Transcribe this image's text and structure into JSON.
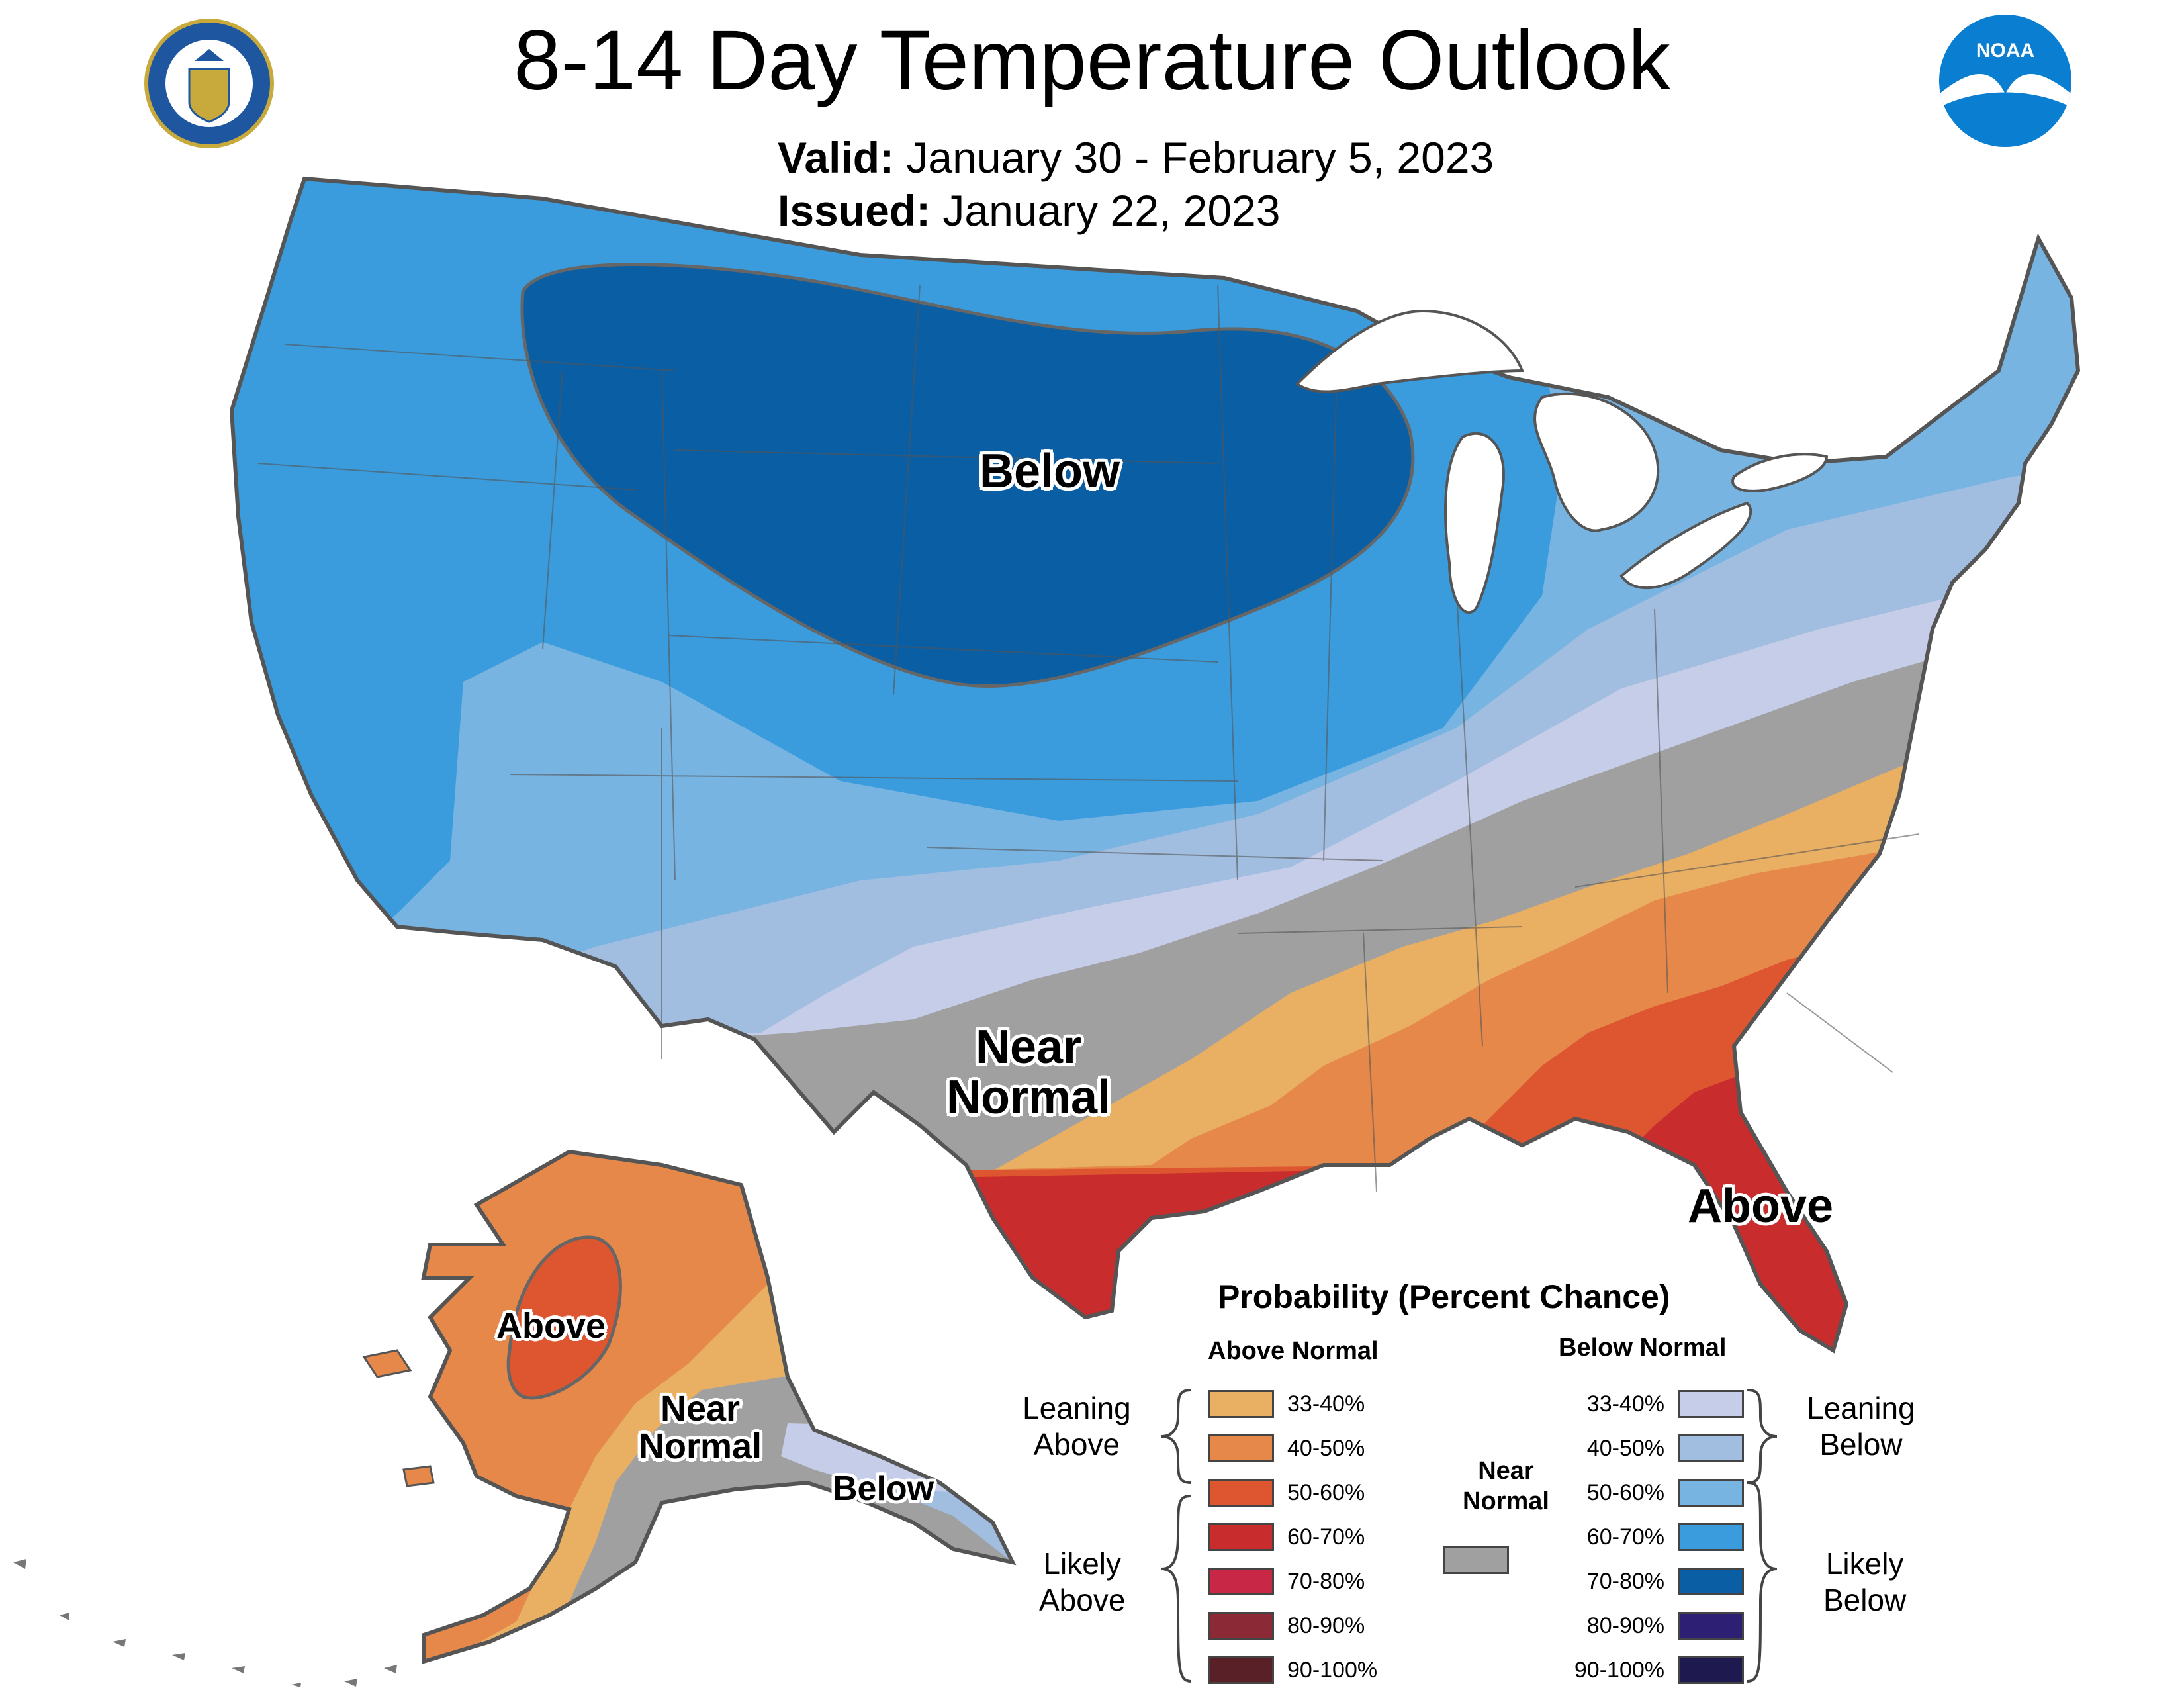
{
  "header": {
    "title": "8-14 Day Temperature Outlook",
    "valid_label": "Valid:",
    "valid_value": "January 30 - February 5, 2023",
    "issued_label": "Issued:",
    "issued_value": "January 22, 2023"
  },
  "logos": {
    "left": "department-of-commerce-seal",
    "right": "noaa-logo",
    "noaa_text": "NOAA"
  },
  "map_labels": {
    "conus_below": "Below",
    "conus_near_normal_1": "Near",
    "conus_near_normal_2": "Normal",
    "conus_above": "Above",
    "alaska_above": "Above",
    "alaska_near_normal_1": "Near",
    "alaska_near_normal_2": "Normal",
    "alaska_below": "Below"
  },
  "legend": {
    "title": "Probability (Percent Chance)",
    "above_header": "Above Normal",
    "below_header": "Below Normal",
    "near_header_1": "Near",
    "near_header_2": "Normal",
    "near_color": "#a0a0a0",
    "above_groups": {
      "leaning_1": "Leaning",
      "leaning_2": "Above",
      "likely_1": "Likely",
      "likely_2": "Above"
    },
    "below_groups": {
      "leaning_1": "Leaning",
      "leaning_2": "Below",
      "likely_1": "Likely",
      "likely_2": "Below"
    },
    "above": [
      {
        "range": "33-40%",
        "color": "#e9b064"
      },
      {
        "range": "40-50%",
        "color": "#e5884a"
      },
      {
        "range": "50-60%",
        "color": "#dd5630"
      },
      {
        "range": "60-70%",
        "color": "#c82c2c"
      },
      {
        "range": "70-80%",
        "color": "#c82845"
      },
      {
        "range": "80-90%",
        "color": "#8b2a36"
      },
      {
        "range": "90-100%",
        "color": "#5a2028"
      }
    ],
    "below": [
      {
        "range": "33-40%",
        "color": "#c5cde8"
      },
      {
        "range": "40-50%",
        "color": "#a1bde0"
      },
      {
        "range": "50-60%",
        "color": "#78b4e2"
      },
      {
        "range": "60-70%",
        "color": "#3a9cdc"
      },
      {
        "range": "70-80%",
        "color": "#0a5ea3"
      },
      {
        "range": "80-90%",
        "color": "#2c1f74"
      },
      {
        "range": "90-100%",
        "color": "#1e1a50"
      }
    ]
  }
}
